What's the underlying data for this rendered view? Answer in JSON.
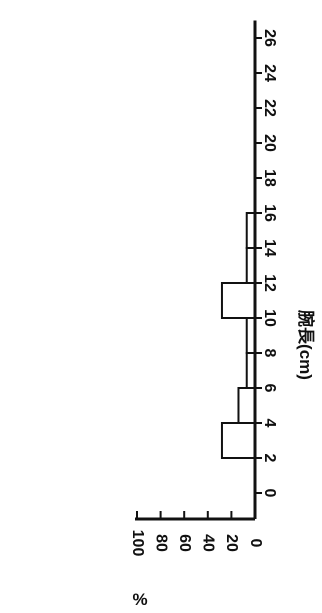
{
  "chart_data": {
    "type": "bar",
    "orientation": "rotated-90-clockwise",
    "title": "",
    "xlabel": "腕長(cm)",
    "ylabel": "%",
    "bin_width": 2,
    "categories": [
      "0-2",
      "2-4",
      "4-6",
      "6-8",
      "8-10",
      "10-12",
      "12-14",
      "14-16",
      "16-18",
      "18-20",
      "20-22",
      "22-24",
      "24-26",
      "26-28"
    ],
    "bins": [
      {
        "x0": 0,
        "x1": 2,
        "value": 0
      },
      {
        "x0": 2,
        "x1": 4,
        "value": 28
      },
      {
        "x0": 4,
        "x1": 6,
        "value": 14
      },
      {
        "x0": 6,
        "x1": 8,
        "value": 7
      },
      {
        "x0": 8,
        "x1": 10,
        "value": 7
      },
      {
        "x0": 10,
        "x1": 12,
        "value": 28
      },
      {
        "x0": 12,
        "x1": 14,
        "value": 7
      },
      {
        "x0": 14,
        "x1": 16,
        "value": 7
      },
      {
        "x0": 16,
        "x1": 18,
        "value": 0
      },
      {
        "x0": 18,
        "x1": 20,
        "value": 0
      },
      {
        "x0": 20,
        "x1": 22,
        "value": 0
      },
      {
        "x0": 22,
        "x1": 24,
        "value": 0
      },
      {
        "x0": 24,
        "x1": 26,
        "value": 0
      },
      {
        "x0": 26,
        "x1": 28,
        "value": 0
      }
    ],
    "xlim": [
      0,
      27
    ],
    "ylim": [
      0,
      100
    ],
    "xticks": [
      0,
      2,
      4,
      6,
      8,
      10,
      12,
      14,
      16,
      18,
      20,
      22,
      24,
      26
    ],
    "yticks": [
      0,
      20,
      40,
      60,
      80,
      100
    ],
    "grid": false,
    "legend": "none",
    "colors": {
      "bar_fill": "#ffffff",
      "bar_stroke": "#111111",
      "axis": "#111111"
    }
  }
}
